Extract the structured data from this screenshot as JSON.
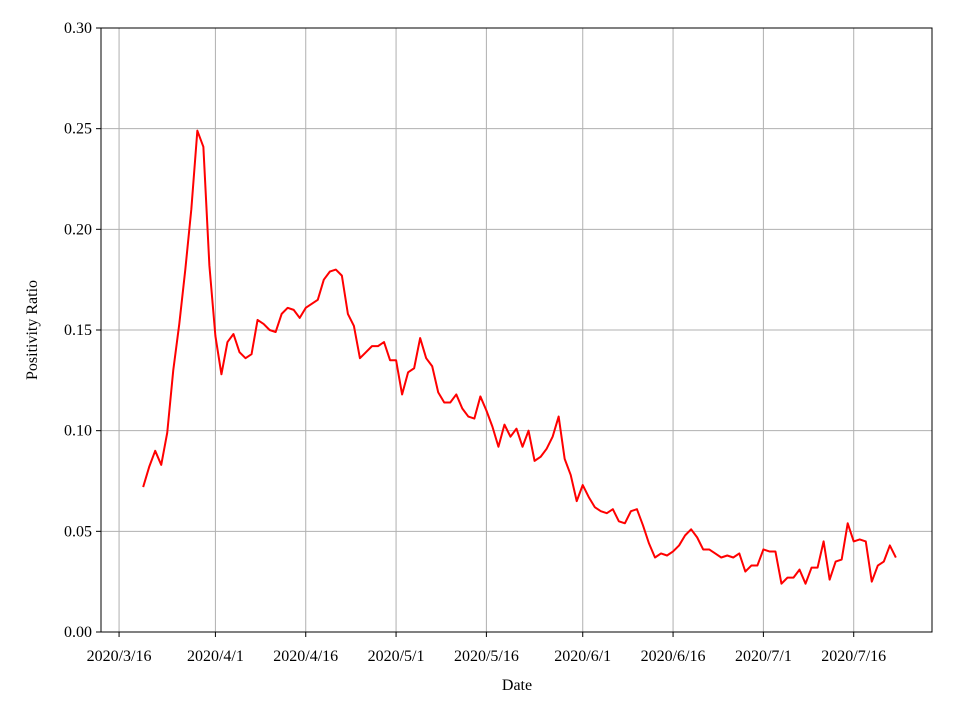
{
  "chart_data": {
    "type": "line",
    "xlabel": "Date",
    "ylabel": "Positivity Ratio",
    "color": "#ff0000",
    "grid": true,
    "xlim": [
      "2020/3/13",
      "2020/7/29"
    ],
    "xticks": [
      "2020/3/16",
      "2020/4/1",
      "2020/4/16",
      "2020/5/1",
      "2020/5/16",
      "2020/6/1",
      "2020/6/16",
      "2020/7/1",
      "2020/7/16"
    ],
    "ylim": [
      0,
      0.3
    ],
    "yticks": [
      {
        "value": 0,
        "label": "0.00"
      },
      {
        "value": 0.05,
        "label": "0.05"
      },
      {
        "value": 0.1,
        "label": "0.10"
      },
      {
        "value": 0.15,
        "label": "0.15"
      },
      {
        "value": 0.2,
        "label": "0.20"
      },
      {
        "value": 0.25,
        "label": "0.25"
      },
      {
        "value": 0.3,
        "label": "0.30"
      }
    ],
    "x": [
      "2020/3/20",
      "2020/3/21",
      "2020/3/22",
      "2020/3/23",
      "2020/3/24",
      "2020/3/25",
      "2020/3/26",
      "2020/3/27",
      "2020/3/28",
      "2020/3/29",
      "2020/3/30",
      "2020/3/31",
      "2020/4/1",
      "2020/4/2",
      "2020/4/3",
      "2020/4/4",
      "2020/4/5",
      "2020/4/6",
      "2020/4/7",
      "2020/4/8",
      "2020/4/9",
      "2020/4/10",
      "2020/4/11",
      "2020/4/12",
      "2020/4/13",
      "2020/4/14",
      "2020/4/15",
      "2020/4/16",
      "2020/4/17",
      "2020/4/18",
      "2020/4/19",
      "2020/4/20",
      "2020/4/21",
      "2020/4/22",
      "2020/4/23",
      "2020/4/24",
      "2020/4/25",
      "2020/4/26",
      "2020/4/27",
      "2020/4/28",
      "2020/4/29",
      "2020/4/30",
      "2020/5/1",
      "2020/5/2",
      "2020/5/3",
      "2020/5/4",
      "2020/5/5",
      "2020/5/6",
      "2020/5/7",
      "2020/5/8",
      "2020/5/9",
      "2020/5/10",
      "2020/5/11",
      "2020/5/12",
      "2020/5/13",
      "2020/5/14",
      "2020/5/15",
      "2020/5/16",
      "2020/5/17",
      "2020/5/18",
      "2020/5/19",
      "2020/5/20",
      "2020/5/21",
      "2020/5/22",
      "2020/5/23",
      "2020/5/24",
      "2020/5/25",
      "2020/5/26",
      "2020/5/27",
      "2020/5/28",
      "2020/5/29",
      "2020/5/30",
      "2020/5/31",
      "2020/6/1",
      "2020/6/2",
      "2020/6/3",
      "2020/6/4",
      "2020/6/5",
      "2020/6/6",
      "2020/6/7",
      "2020/6/8",
      "2020/6/9",
      "2020/6/10",
      "2020/6/11",
      "2020/6/12",
      "2020/6/13",
      "2020/6/14",
      "2020/6/15",
      "2020/6/16",
      "2020/6/17",
      "2020/6/18",
      "2020/6/19",
      "2020/6/20",
      "2020/6/21",
      "2020/6/22",
      "2020/6/23",
      "2020/6/24",
      "2020/6/25",
      "2020/6/26",
      "2020/6/27",
      "2020/6/28",
      "2020/6/29",
      "2020/6/30",
      "2020/7/1",
      "2020/7/2",
      "2020/7/3",
      "2020/7/4",
      "2020/7/5",
      "2020/7/6",
      "2020/7/7",
      "2020/7/8",
      "2020/7/9",
      "2020/7/10",
      "2020/7/11",
      "2020/7/12",
      "2020/7/13",
      "2020/7/14",
      "2020/7/15",
      "2020/7/16",
      "2020/7/17",
      "2020/7/18",
      "2020/7/19",
      "2020/7/20",
      "2020/7/21",
      "2020/7/22",
      "2020/7/23"
    ],
    "values": [
      0.072,
      0.082,
      0.09,
      0.083,
      0.099,
      0.13,
      0.153,
      0.18,
      0.21,
      0.249,
      0.241,
      0.182,
      0.147,
      0.128,
      0.144,
      0.148,
      0.139,
      0.136,
      0.138,
      0.155,
      0.153,
      0.15,
      0.149,
      0.158,
      0.161,
      0.16,
      0.156,
      0.161,
      0.163,
      0.165,
      0.175,
      0.179,
      0.18,
      0.177,
      0.158,
      0.152,
      0.136,
      0.139,
      0.142,
      0.142,
      0.144,
      0.135,
      0.135,
      0.118,
      0.129,
      0.131,
      0.146,
      0.136,
      0.132,
      0.119,
      0.114,
      0.114,
      0.118,
      0.111,
      0.107,
      0.106,
      0.117,
      0.11,
      0.102,
      0.092,
      0.103,
      0.097,
      0.101,
      0.092,
      0.1,
      0.085,
      0.087,
      0.091,
      0.097,
      0.107,
      0.086,
      0.078,
      0.065,
      0.073,
      0.067,
      0.062,
      0.06,
      0.059,
      0.061,
      0.055,
      0.054,
      0.06,
      0.061,
      0.053,
      0.044,
      0.037,
      0.039,
      0.038,
      0.04,
      0.043,
      0.048,
      0.051,
      0.047,
      0.041,
      0.041,
      0.039,
      0.037,
      0.038,
      0.037,
      0.039,
      0.03,
      0.033,
      0.033,
      0.041,
      0.04,
      0.04,
      0.024,
      0.027,
      0.027,
      0.031,
      0.024,
      0.032,
      0.032,
      0.045,
      0.026,
      0.035,
      0.036,
      0.054,
      0.045,
      0.046,
      0.045,
      0.025,
      0.033,
      0.035,
      0.043,
      0.037
    ]
  }
}
